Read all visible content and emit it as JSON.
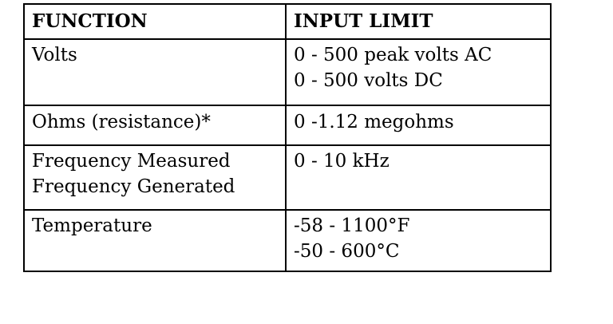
{
  "table": {
    "headers": [
      "FUNCTION",
      "INPUT LIMIT"
    ],
    "rows": [
      {
        "function": [
          "Volts"
        ],
        "limit": [
          "0 - 500 peak volts AC",
          "0 - 500 volts DC"
        ]
      },
      {
        "function": [
          "Ohms (resistance)*"
        ],
        "limit": [
          "0 -1.12 megohms"
        ]
      },
      {
        "function": [
          "Frequency Measured",
          "Frequency Generated"
        ],
        "limit": [
          "0 - 10 kHz"
        ]
      },
      {
        "function": [
          "Temperature"
        ],
        "limit": [
          "-58 - 1100°F",
          "-50 - 600°C"
        ]
      }
    ]
  }
}
